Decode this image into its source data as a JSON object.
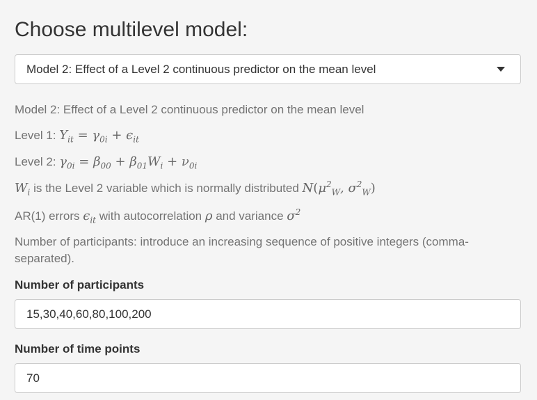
{
  "title": "Choose multilevel model:",
  "model_select": {
    "selected": "Model 2: Effect of a Level 2 continuous predictor on the mean level"
  },
  "description": {
    "model_name": "Model 2: Effect of a Level 2 continuous predictor on the mean level",
    "level1_prefix": "Level 1: ",
    "level2_prefix": "Level 2: ",
    "wi_text": " is the Level 2 variable which is normally distributed ",
    "ar_prefix": "AR(1) errors ",
    "ar_middle": " with autocorrelation ",
    "ar_and": " and variance ",
    "participants_help": "Number of participants: introduce an increasing sequence of positive integers (comma-separated)."
  },
  "participants": {
    "label": "Number of participants",
    "value": "15,30,40,60,80,100,200"
  },
  "timepoints": {
    "label": "Number of time points",
    "value": "70"
  }
}
